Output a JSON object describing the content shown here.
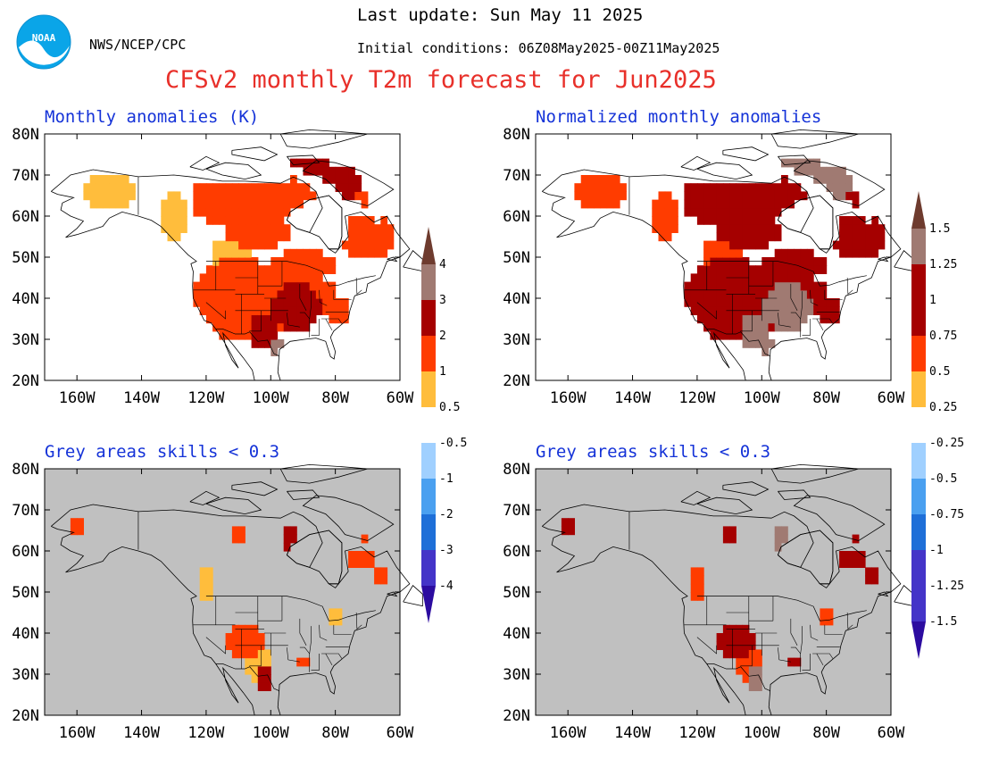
{
  "header": {
    "last_update": "Last update: Sun May 11 2025",
    "initial_conditions": "Initial conditions: 06Z08May2025-00Z11May2025",
    "org": "NWS/NCEP/CPC",
    "title": "CFSv2 monthly T2m forecast for Jun2025",
    "logo_text": "NOAA"
  },
  "panels": [
    {
      "id": "p1",
      "title": "Monthly anomalies (K)",
      "masked": false
    },
    {
      "id": "p2",
      "title": "Normalized monthly anomalies",
      "masked": false
    },
    {
      "id": "p3",
      "title": "Grey areas skills < 0.3",
      "masked": true
    },
    {
      "id": "p4",
      "title": "Grey areas skills < 0.3",
      "masked": true
    }
  ],
  "axes": {
    "lat_ticks": [
      "80N",
      "70N",
      "60N",
      "50N",
      "40N",
      "30N",
      "20N"
    ],
    "lon_ticks": [
      "160W",
      "140W",
      "120W",
      "100W",
      "80W",
      "60W"
    ]
  },
  "colorbars": {
    "left": [
      "4",
      "3",
      "2",
      "1",
      "0.5",
      "-0.5",
      "-1",
      "-2",
      "-3",
      "-4"
    ],
    "right": [
      "1.5",
      "1.25",
      "1",
      "0.75",
      "0.5",
      "0.25",
      "-0.25",
      "-0.5",
      "-0.75",
      "-1",
      "-1.25",
      "-1.5"
    ]
  },
  "colors": {
    "grey_mask": "#c0c0c0",
    "anom_05_1": "#ffbd3c",
    "anom_1_2": "#ff3c00",
    "anom_2_3": "#a50000",
    "anom_3_4": "#a07a72",
    "anom_gt4": "#6e3b2e",
    "neg_05_1": "#a0d0ff",
    "neg_1_2": "#4aa0f0",
    "neg_2_3": "#1e6fd8",
    "neg_3_4": "#4434c8",
    "neg_lt4": "#2c0ca0"
  }
}
